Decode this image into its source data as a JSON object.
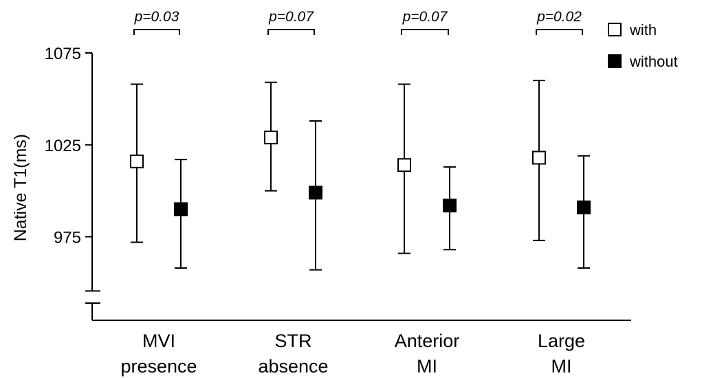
{
  "chart_data": {
    "type": "scatter",
    "variant": "error-bar",
    "ylabel": "Native T1(ms)",
    "y_ticks": [
      "1075",
      "1025",
      "975"
    ],
    "y_tick_values": [
      1075,
      1025,
      975
    ],
    "ylim": [
      950,
      1077
    ],
    "y_axis_break": true,
    "grid": false,
    "legend_position": "top-right",
    "categories": [
      {
        "label_lines": [
          "MVI",
          "presence"
        ],
        "p_value": "p=0.03"
      },
      {
        "label_lines": [
          "STR",
          "absence"
        ],
        "p_value": "p=0.07"
      },
      {
        "label_lines": [
          "Anterior",
          "MI"
        ],
        "p_value": "p=0.07"
      },
      {
        "label_lines": [
          "Large",
          "MI"
        ],
        "p_value": "p=0.02"
      }
    ],
    "series": [
      {
        "name": "with",
        "fill": "#ffffff",
        "stroke": "#000000",
        "mean": [
          1016,
          1029,
          1014,
          1018
        ],
        "upper": [
          1058,
          1059,
          1058,
          1060
        ],
        "lower": [
          972,
          1000,
          966,
          973
        ]
      },
      {
        "name": "without",
        "fill": "#000000",
        "stroke": "#000000",
        "mean": [
          990,
          999,
          992,
          991
        ],
        "upper": [
          1017,
          1038,
          1013,
          1019
        ],
        "lower": [
          958,
          957,
          968,
          958
        ]
      }
    ]
  }
}
